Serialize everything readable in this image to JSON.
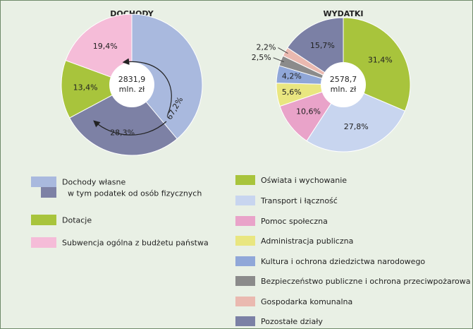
{
  "chart_data": [
    {
      "type": "pie",
      "title": "DOCHODY",
      "center_label": [
        "2831,9",
        "mln. zł"
      ],
      "categories": [
        "Dochody własne",
        "Dotacje",
        "Subwencja ogólna z budżetu państwa"
      ],
      "values": [
        67.2,
        13.4,
        19.4
      ],
      "value_labels": [
        "67,2%",
        "13,4%",
        "19,4%"
      ],
      "colors": [
        "#a9b9de",
        "#a8c43c",
        "#f5bcd8"
      ],
      "sub_segment": {
        "name": "w tym podatek od osób fizycznych",
        "parent": 0,
        "value": 28.3,
        "value_label": "28,3%",
        "color": "#7d81a5"
      }
    },
    {
      "type": "pie",
      "title": "WYDATKI",
      "center_label": [
        "2578,7",
        "mln. zł"
      ],
      "categories": [
        "Oświata i wychowanie",
        "Transport i łączność",
        "Pomoc społeczna",
        "Administracja publiczna",
        "Kultura i ochrona dziedzictwa narodowego",
        "Bezpieczeństwo publiczne i ochrona przeciwpożarowa",
        "Gospodarka komunalna",
        "Pozostałe działy"
      ],
      "values": [
        31.4,
        27.8,
        10.6,
        5.6,
        4.2,
        2.5,
        2.2,
        15.7
      ],
      "value_labels": [
        "31,4%",
        "27,8%",
        "10,6%",
        "5,6%",
        "4,2%",
        "2,5%",
        "2,2%",
        "15,7%"
      ],
      "colors": [
        "#a8c43c",
        "#c8d5ef",
        "#e9a3c9",
        "#e9e680",
        "#90a7d8",
        "#8b8b8b",
        "#eab9b0",
        "#7b80a5"
      ]
    }
  ]
}
